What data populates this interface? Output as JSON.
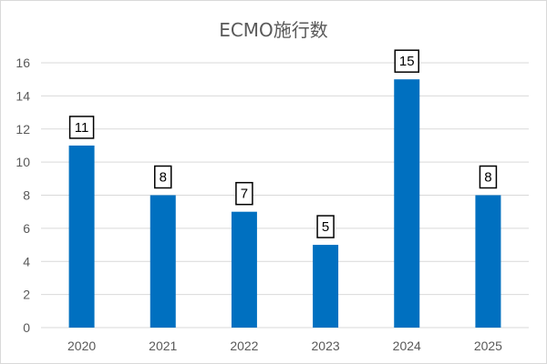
{
  "chart_data": {
    "type": "bar",
    "title": "ECMO施行数",
    "categories": [
      "2020",
      "2021",
      "2022",
      "2023",
      "2024",
      "2025"
    ],
    "values": [
      11,
      8,
      7,
      5,
      15,
      8
    ],
    "xlabel": "",
    "ylabel": "",
    "ylim": [
      0,
      16
    ],
    "yticks": [
      0,
      2,
      4,
      6,
      8,
      10,
      12,
      14,
      16
    ],
    "grid": true,
    "legend": "none",
    "data_labels": true,
    "colors": {
      "bar": "#0070C0",
      "grid": "#d9d9d9",
      "axis_text": "#595959",
      "label_border": "#000000"
    }
  }
}
